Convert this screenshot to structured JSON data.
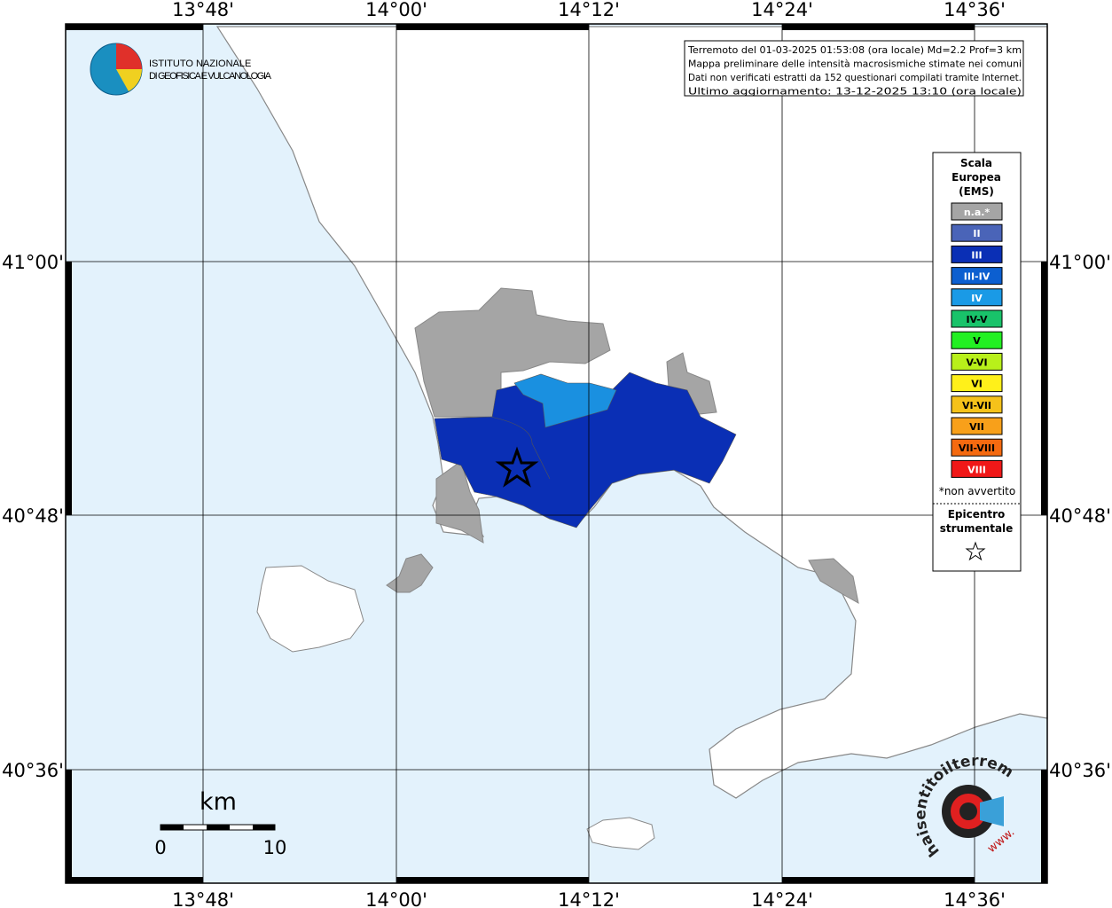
{
  "map": {
    "lon_labels": [
      "13°48'",
      "14°00'",
      "14°12'",
      "14°24'",
      "14°36'"
    ],
    "lat_labels": [
      "41°00'",
      "40°48'",
      "40°36'"
    ]
  },
  "logo": {
    "line1": "ISTITUTO NAZIONALE",
    "line2": "DI GEOFISICA E VULCANOLOGIA"
  },
  "info": {
    "lines": [
      "Terremoto del 01-03-2025 01:53:08 (ora locale) Md=2.2 Prof=3 km",
      "Mappa preliminare delle intensità macrosismiche stimate nei comuni",
      "Dati non verificati estratti da 152 questionari compilati tramite Internet.",
      "Ultimo aggiornamento: 13-12-2025 13:10 (ora locale)"
    ]
  },
  "legend": {
    "title_lines": [
      "Scala",
      "Europea",
      "(EMS)"
    ],
    "items": [
      {
        "label": "n.a.*",
        "color": "#a5a5a5",
        "text_color": "#ffffff"
      },
      {
        "label": "II",
        "color": "#4a64b8",
        "text_color": "#ffffff"
      },
      {
        "label": "III",
        "color": "#0a2fb5",
        "text_color": "#ffffff"
      },
      {
        "label": "III-IV",
        "color": "#0c5fd0",
        "text_color": "#ffffff"
      },
      {
        "label": "IV",
        "color": "#1a9ae6",
        "text_color": "#ffffff"
      },
      {
        "label": "IV-V",
        "color": "#19c36a",
        "text_color": "#000000"
      },
      {
        "label": "V",
        "color": "#22f022",
        "text_color": "#000000"
      },
      {
        "label": "V-VI",
        "color": "#b8f01a",
        "text_color": "#000000"
      },
      {
        "label": "VI",
        "color": "#fff01a",
        "text_color": "#000000"
      },
      {
        "label": "VI-VII",
        "color": "#f5c21a",
        "text_color": "#000000"
      },
      {
        "label": "VII",
        "color": "#f8a01a",
        "text_color": "#000000"
      },
      {
        "label": "VII-VIII",
        "color": "#f56a10",
        "text_color": "#000000"
      },
      {
        "label": "VIII",
        "color": "#f01818",
        "text_color": "#ffffff"
      }
    ],
    "note": "*non avvertito",
    "epicenter_lines": [
      "Epicentro",
      "strumentale"
    ]
  },
  "scale_bar": {
    "unit": "km",
    "labels": [
      "0",
      "10"
    ]
  },
  "badge": {
    "text": "haisentitoilterremoto.it",
    "url_prefix": "www."
  }
}
